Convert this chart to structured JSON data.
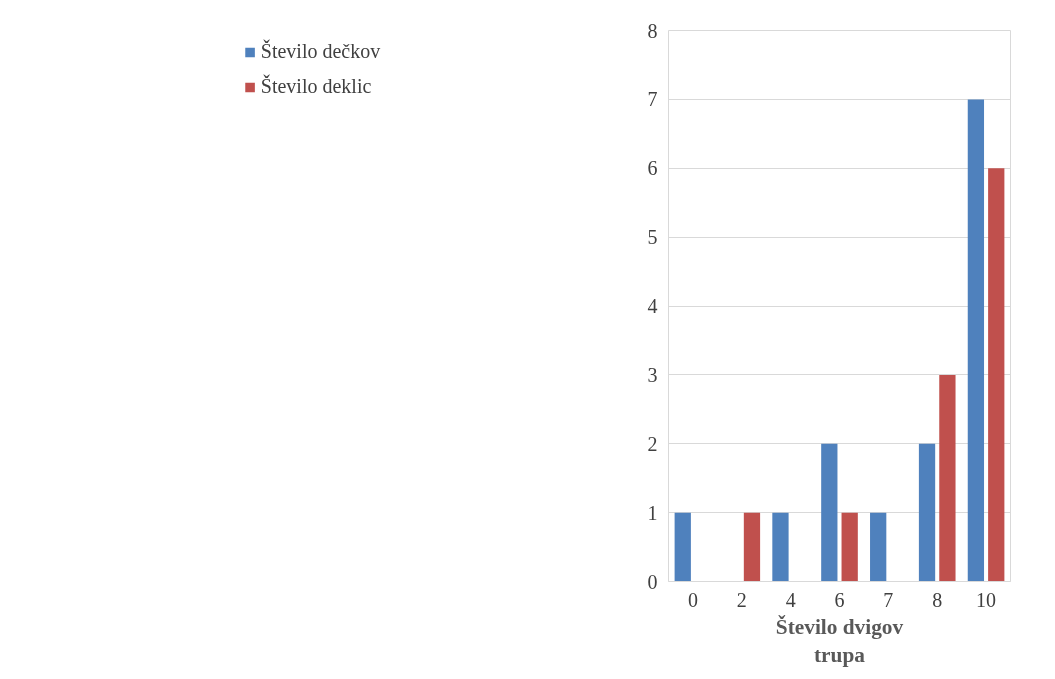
{
  "chart_data": {
    "type": "bar",
    "xlabel": "Število dvigov\ntrupa",
    "categories": [
      "0",
      "2",
      "4",
      "6",
      "7",
      "8",
      "10"
    ],
    "series": [
      {
        "name": "Število dečkov",
        "color": "#4f81bd",
        "values": [
          1,
          0,
          1,
          2,
          1,
          2,
          7
        ]
      },
      {
        "name": "Število deklic",
        "color": "#c0504d",
        "values": [
          0,
          1,
          0,
          1,
          0,
          3,
          6
        ]
      }
    ],
    "ylim": [
      0,
      8
    ],
    "yticks": [
      0,
      1,
      2,
      3,
      4,
      5,
      6,
      7,
      8
    ],
    "grid": "y",
    "legend": "left"
  }
}
